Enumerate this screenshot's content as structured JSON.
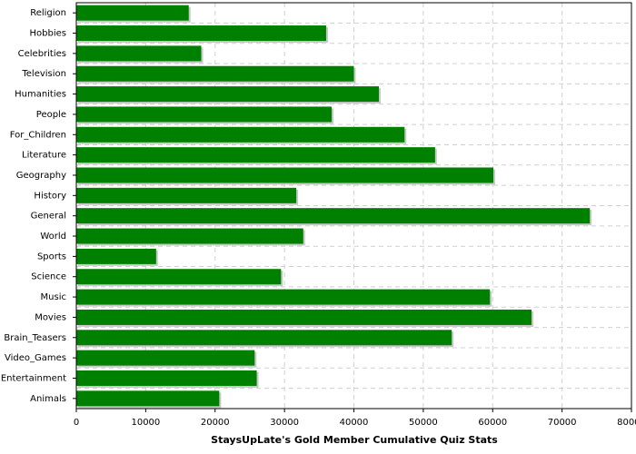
{
  "chart_data": {
    "type": "barh",
    "title": "StaysUpLate's Gold Member Cumulative Quiz Stats",
    "categories": [
      "Religion",
      "Hobbies",
      "Celebrities",
      "Television",
      "Humanities",
      "People",
      "For_Children",
      "Literature",
      "Geography",
      "History",
      "General",
      "World",
      "Sports",
      "Science",
      "Music",
      "Movies",
      "Brain_Teasers",
      "Video_Games",
      "Entertainment",
      "Animals"
    ],
    "values": [
      16200,
      36000,
      18000,
      40000,
      43600,
      36800,
      47300,
      51700,
      60100,
      31700,
      74000,
      32700,
      11500,
      29500,
      59600,
      65600,
      54100,
      25700,
      26000,
      20600
    ],
    "color": "#008000",
    "xlim": [
      0,
      80000
    ],
    "xticks": [
      0,
      10000,
      20000,
      30000,
      40000,
      50000,
      60000,
      70000,
      80000
    ],
    "grid": true
  }
}
